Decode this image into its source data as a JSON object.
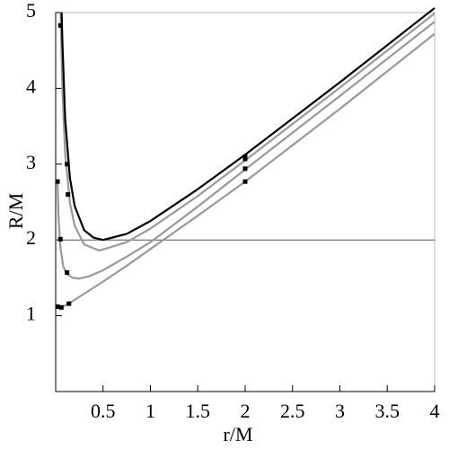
{
  "chart_data": {
    "type": "line",
    "xlabel": "r/M",
    "ylabel": "R/M",
    "xlim": [
      0,
      4
    ],
    "ylim": [
      0,
      5
    ],
    "xticks": [
      0.5,
      1,
      1.5,
      2,
      2.5,
      3,
      3.5,
      4
    ],
    "yticks": [
      1,
      2,
      3,
      4,
      5
    ],
    "hlines": [
      2
    ],
    "series": [
      {
        "color": "#999999",
        "x": [
          0.02,
          0.06,
          0.14,
          0.25,
          0.5,
          0.75,
          1,
          1.5,
          2,
          3,
          4
        ],
        "values": [
          1.12,
          1.11,
          1.16,
          1.25,
          1.45,
          1.66,
          1.88,
          2.32,
          2.77,
          3.73,
          4.72
        ]
      },
      {
        "color": "#999999",
        "x": [
          0.02,
          0.03,
          0.05,
          0.08,
          0.12,
          0.18,
          0.25,
          0.35,
          0.5,
          0.75,
          1,
          1.5,
          2,
          3,
          4
        ],
        "values": [
          2.77,
          2.3,
          1.9,
          1.65,
          1.55,
          1.5,
          1.49,
          1.52,
          1.6,
          1.78,
          1.97,
          2.44,
          2.93,
          3.9,
          4.88
        ]
      },
      {
        "color": "#999999",
        "x": [
          0.052,
          0.07,
          0.1,
          0.15,
          0.2,
          0.3,
          0.46,
          0.75,
          1,
          1.5,
          2,
          3,
          4
        ],
        "values": [
          5.0,
          4.01,
          3.14,
          2.49,
          2.19,
          1.94,
          1.86,
          1.97,
          2.15,
          2.58,
          3.05,
          4.01,
          4.99
        ]
      },
      {
        "color": "#000000",
        "x": [
          0.063,
          0.07,
          0.1,
          0.15,
          0.2,
          0.3,
          0.4,
          0.5,
          0.75,
          1,
          1.5,
          2,
          3,
          4
        ],
        "values": [
          5.0,
          4.64,
          3.6,
          2.82,
          2.45,
          2.13,
          2.03,
          2.0,
          2.08,
          2.25,
          2.67,
          3.125,
          4.08,
          5.06
        ]
      }
    ],
    "markers": {
      "color": "#000000",
      "x": [
        0.05,
        0.12,
        0.13,
        0.02,
        0.05,
        0.12,
        0.02,
        0.06,
        0.14,
        2,
        2,
        2,
        2
      ],
      "values": [
        4.83,
        3.0,
        2.6,
        2.77,
        2.01,
        1.57,
        1.12,
        1.11,
        1.16,
        3.1,
        3.07,
        2.94,
        2.77
      ]
    }
  }
}
